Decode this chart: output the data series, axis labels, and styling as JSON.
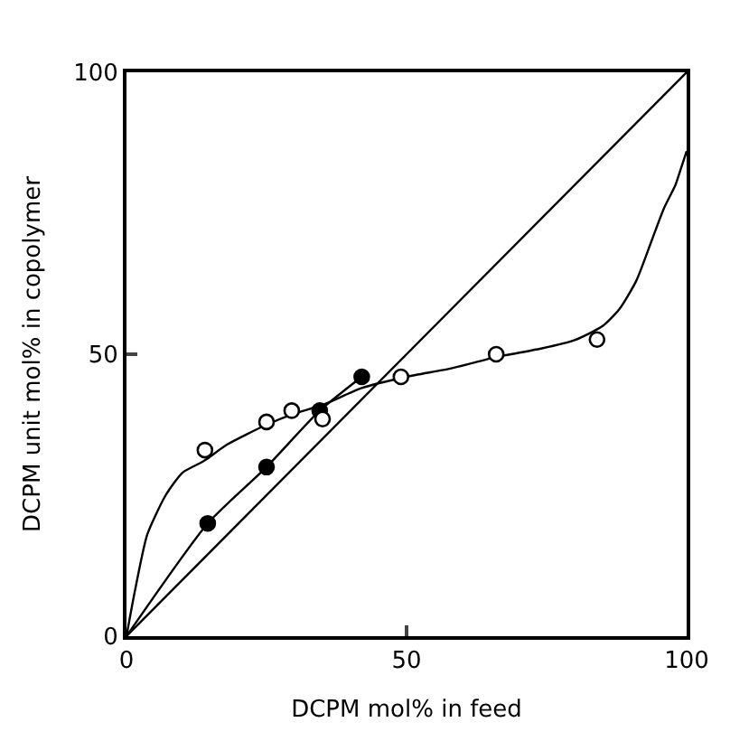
{
  "chart_data": {
    "type": "scatter",
    "xlabel": "DCPM mol% in feed",
    "ylabel": "DCPM unit mol% in copolymer",
    "xlim": [
      0,
      100
    ],
    "ylim": [
      0,
      100
    ],
    "xticks": [
      0,
      50,
      100
    ],
    "yticks": [
      0,
      50,
      100
    ],
    "series": [
      {
        "type": "line",
        "color": "#000000",
        "marker": "none",
        "x": [
          0,
          100
        ],
        "values": [
          0,
          100
        ]
      },
      {
        "type": "line",
        "color": "#000000",
        "marker": "none",
        "x": [
          0,
          1.5,
          3.7,
          7,
          10,
          13.7,
          18,
          25,
          30,
          35,
          42,
          50,
          58,
          66,
          74,
          80,
          85,
          88,
          91,
          93.7,
          96,
          98,
          99,
          100
        ],
        "values": [
          0,
          8,
          18,
          25,
          29,
          31,
          34,
          37.5,
          39.5,
          41,
          44,
          46,
          47.5,
          49.5,
          51,
          52.5,
          55,
          58,
          63,
          70,
          76,
          80,
          83,
          86
        ]
      },
      {
        "type": "line",
        "color": "#000000",
        "marker": "none",
        "x": [
          0,
          14.5,
          25,
          34.5,
          42
        ],
        "values": [
          0,
          20,
          30,
          40,
          46
        ]
      },
      {
        "color": "#000000",
        "marker": "circle",
        "x": [
          14.5,
          25,
          34.5,
          42
        ],
        "values": [
          20,
          30,
          40,
          46
        ]
      },
      {
        "color": "#ffffff",
        "marker": "circle",
        "x": [
          14,
          25,
          29.5,
          35,
          49,
          66,
          84
        ],
        "values": [
          33,
          38,
          40,
          38.5,
          46,
          50,
          52.6
        ]
      }
    ]
  }
}
